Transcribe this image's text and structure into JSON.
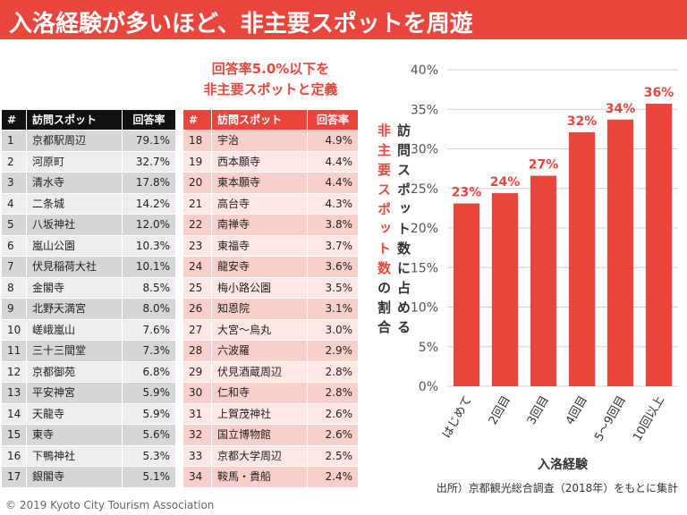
{
  "header": {
    "title": "入洛経験が多いほど、非主要スポットを周遊"
  },
  "note": [
    "回答率5.0%以下を",
    "非主要スポットと定義"
  ],
  "table_left": {
    "columns": [
      "#",
      "訪問スポット",
      "回答率"
    ],
    "rows": [
      [
        1,
        "京都駅周辺",
        "79.1%"
      ],
      [
        2,
        "河原町",
        "32.7%"
      ],
      [
        3,
        "清水寺",
        "17.8%"
      ],
      [
        4,
        "二条城",
        "14.2%"
      ],
      [
        5,
        "八坂神社",
        "12.0%"
      ],
      [
        6,
        "嵐山公園",
        "10.3%"
      ],
      [
        7,
        "伏見稲荷大社",
        "10.1%"
      ],
      [
        8,
        "金閣寺",
        "8.5%"
      ],
      [
        9,
        "北野天満宮",
        "8.0%"
      ],
      [
        10,
        "嵯峨嵐山",
        "7.6%"
      ],
      [
        11,
        "三十三間堂",
        "7.3%"
      ],
      [
        12,
        "京都御苑",
        "6.8%"
      ],
      [
        13,
        "平安神宮",
        "5.9%"
      ],
      [
        14,
        "天龍寺",
        "5.9%"
      ],
      [
        15,
        "東寺",
        "5.6%"
      ],
      [
        16,
        "下鴨神社",
        "5.3%"
      ],
      [
        17,
        "銀閣寺",
        "5.1%"
      ]
    ]
  },
  "table_right": {
    "columns": [
      "#",
      "訪問スポット",
      "回答率"
    ],
    "rows": [
      [
        18,
        "宇治",
        "4.9%"
      ],
      [
        19,
        "西本願寺",
        "4.4%"
      ],
      [
        20,
        "東本願寺",
        "4.4%"
      ],
      [
        21,
        "高台寺",
        "4.3%"
      ],
      [
        22,
        "南禅寺",
        "3.8%"
      ],
      [
        23,
        "東福寺",
        "3.7%"
      ],
      [
        24,
        "龍安寺",
        "3.6%"
      ],
      [
        25,
        "梅小路公園",
        "3.5%"
      ],
      [
        26,
        "知恩院",
        "3.1%"
      ],
      [
        27,
        "大宮～烏丸",
        "3.0%"
      ],
      [
        28,
        "六波羅",
        "2.9%"
      ],
      [
        29,
        "伏見酒蔵周辺",
        "2.8%"
      ],
      [
        30,
        "仁和寺",
        "2.8%"
      ],
      [
        31,
        "上賀茂神社",
        "2.6%"
      ],
      [
        32,
        "国立博物館",
        "2.6%"
      ],
      [
        33,
        "京都大学周辺",
        "2.5%"
      ],
      [
        34,
        "鞍馬・貴船",
        "2.4%"
      ]
    ]
  },
  "copyright": "© 2019 Kyoto City Tourism Association",
  "chart_data": {
    "type": "bar",
    "ylabel": {
      "line1": "訪問スポット数に占める",
      "line2_highlight": "非主要スポット数",
      "line2_rest": "の割合"
    },
    "xlabel": "入洛経験",
    "source": "出所）京都観光総合調査（2018年）をもとに集計",
    "categories": [
      "はじめて",
      "2回目",
      "3回目",
      "4回目",
      "5～9回目",
      "10回以上"
    ],
    "values": [
      23.1,
      24.4,
      26.6,
      32.1,
      33.7,
      35.7
    ],
    "value_labels": [
      "23%",
      "24%",
      "27%",
      "32%",
      "34%",
      "36%"
    ],
    "color": "#e8453c",
    "ylim": [
      0,
      40
    ],
    "yticks": [
      {
        "value": 0,
        "label": "0%"
      },
      {
        "value": 5,
        "label": "5%"
      },
      {
        "value": 10,
        "label": "10%"
      },
      {
        "value": 15,
        "label": "15%"
      },
      {
        "value": 20,
        "label": "20%"
      },
      {
        "value": 25,
        "label": "25%"
      },
      {
        "value": 30,
        "label": "30%"
      },
      {
        "value": 35,
        "label": "35%"
      },
      {
        "value": 40,
        "label": "40%"
      }
    ],
    "grid": true
  }
}
